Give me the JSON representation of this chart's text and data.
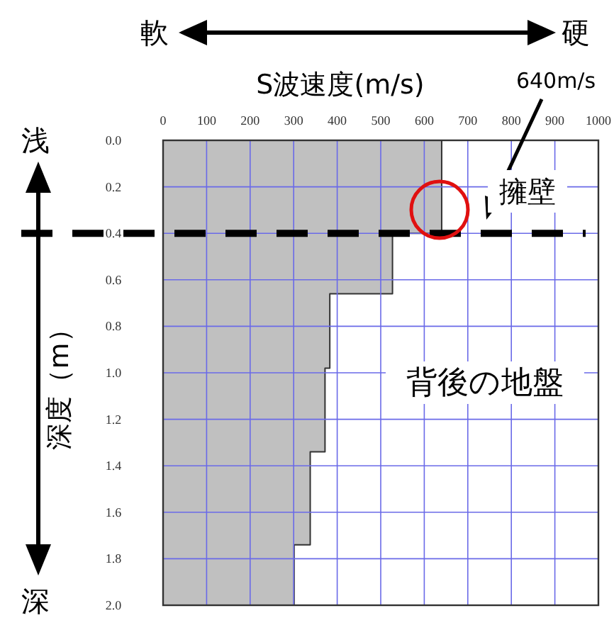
{
  "chart_data": {
    "type": "area",
    "orientation": "horizontal",
    "xlabel": "S波速度(m/s)",
    "ylabel": "深度（m）",
    "x": [
      0,
      0.4,
      0.4,
      0.66,
      0.66,
      0.98,
      0.98,
      1.34,
      1.34,
      1.74,
      1.74,
      2.0
    ],
    "values": [
      640,
      640,
      527,
      527,
      383,
      383,
      372,
      372,
      338,
      338,
      301,
      301
    ],
    "color": "#c0c0c0",
    "xlim": [
      0,
      1000
    ],
    "xticks": [
      0,
      100,
      200,
      300,
      400,
      500,
      600,
      700,
      800,
      900,
      1000
    ],
    "ylim": [
      2.0,
      0
    ],
    "yticks": [
      {
        "value": 0,
        "label": "0.0"
      },
      {
        "value": 0.2,
        "label": "0.2"
      },
      {
        "value": 0.4,
        "label": "0.4"
      },
      {
        "value": 0.6,
        "label": "0.6"
      },
      {
        "value": 0.8,
        "label": "0.8"
      },
      {
        "value": 1.0,
        "label": "1.0"
      },
      {
        "value": 1.2,
        "label": "1.2"
      },
      {
        "value": 1.4,
        "label": "1.4"
      },
      {
        "value": 1.6,
        "label": "1.6"
      },
      {
        "value": 1.8,
        "label": "1.8"
      },
      {
        "value": 2.0,
        "label": "2.0"
      }
    ],
    "grid": true,
    "ref_lines": [
      {
        "axis": "y",
        "value": 0.4,
        "color": "#000000",
        "line_style": "dashed"
      }
    ],
    "annotations": [
      "640m/s",
      "擁壁",
      "背後の地盤",
      "軟",
      "硬",
      "浅",
      "深"
    ]
  }
}
